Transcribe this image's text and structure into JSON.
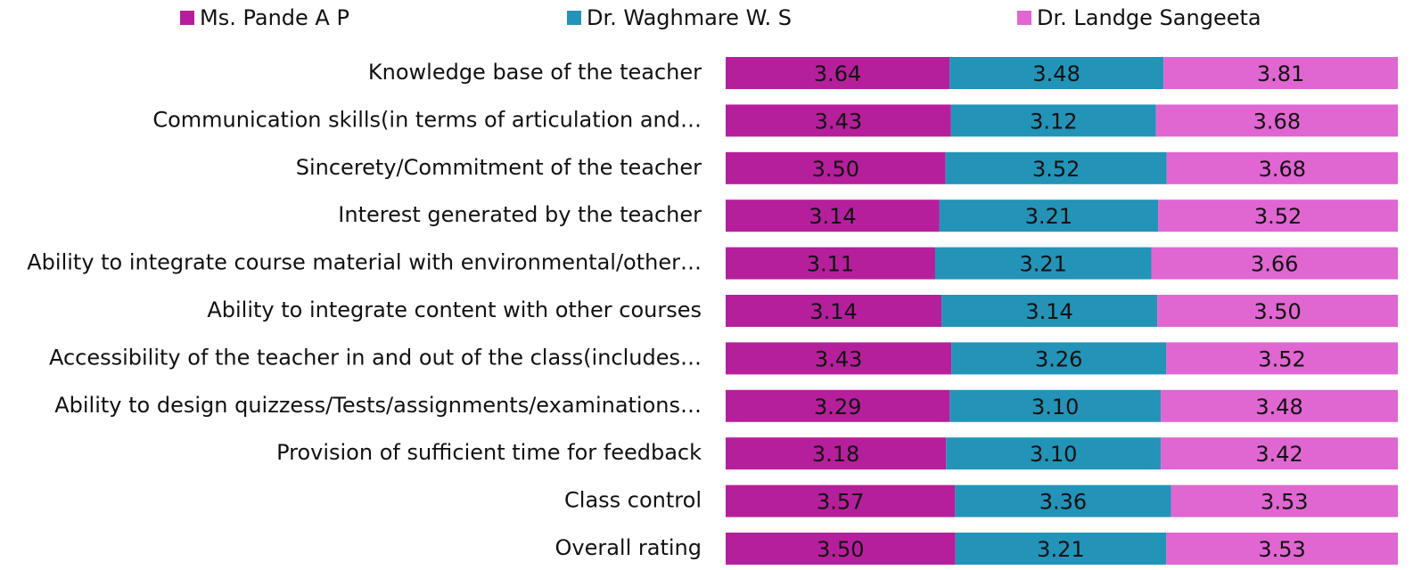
{
  "chart_data": {
    "type": "bar",
    "orientation": "horizontal",
    "stacking": "percent",
    "categories": [
      "Knowledge base of the teacher",
      "Communication skills(in terms of articulation and…",
      "Sincerety/Commitment of the teacher",
      "Interest generated by the teacher",
      "Ability to integrate course material with environmental/other…",
      "Ability to integrate content with other courses",
      "Accessibility of the teacher in and out of the class(includes…",
      "Ability to design quizzess/Tests/assignments/examinations…",
      "Provision of  sufficient time for feedback",
      "Class control",
      "Overall rating"
    ],
    "series": [
      {
        "name": "Ms. Pande A P",
        "color": "#b61f9c",
        "values": [
          3.64,
          3.43,
          3.5,
          3.14,
          3.11,
          3.14,
          3.43,
          3.29,
          3.18,
          3.57,
          3.5
        ],
        "value_labels": [
          "3.64",
          "3.43",
          "3.50",
          "3.14",
          "3.11",
          "3.14",
          "3.43",
          "3.29",
          "3.18",
          "3.57",
          "3.50"
        ]
      },
      {
        "name": "Dr. Waghmare W. S",
        "color": "#2393b8",
        "values": [
          3.48,
          3.12,
          3.52,
          3.21,
          3.21,
          3.14,
          3.26,
          3.1,
          3.1,
          3.36,
          3.21
        ],
        "value_labels": [
          "3.48",
          "3.12",
          "3.52",
          "3.21",
          "3.21",
          "3.14",
          "3.26",
          "3.10",
          "3.10",
          "3.36",
          "3.21"
        ]
      },
      {
        "name": "Dr. Landge Sangeeta",
        "color": "#e066d2",
        "values": [
          3.81,
          3.68,
          3.68,
          3.52,
          3.66,
          3.5,
          3.52,
          3.48,
          3.42,
          3.53,
          3.53
        ],
        "value_labels": [
          "3.81",
          "3.68",
          "3.68",
          "3.52",
          "3.66",
          "3.50",
          "3.52",
          "3.48",
          "3.42",
          "3.53",
          "3.53"
        ]
      }
    ],
    "legend": "top"
  }
}
